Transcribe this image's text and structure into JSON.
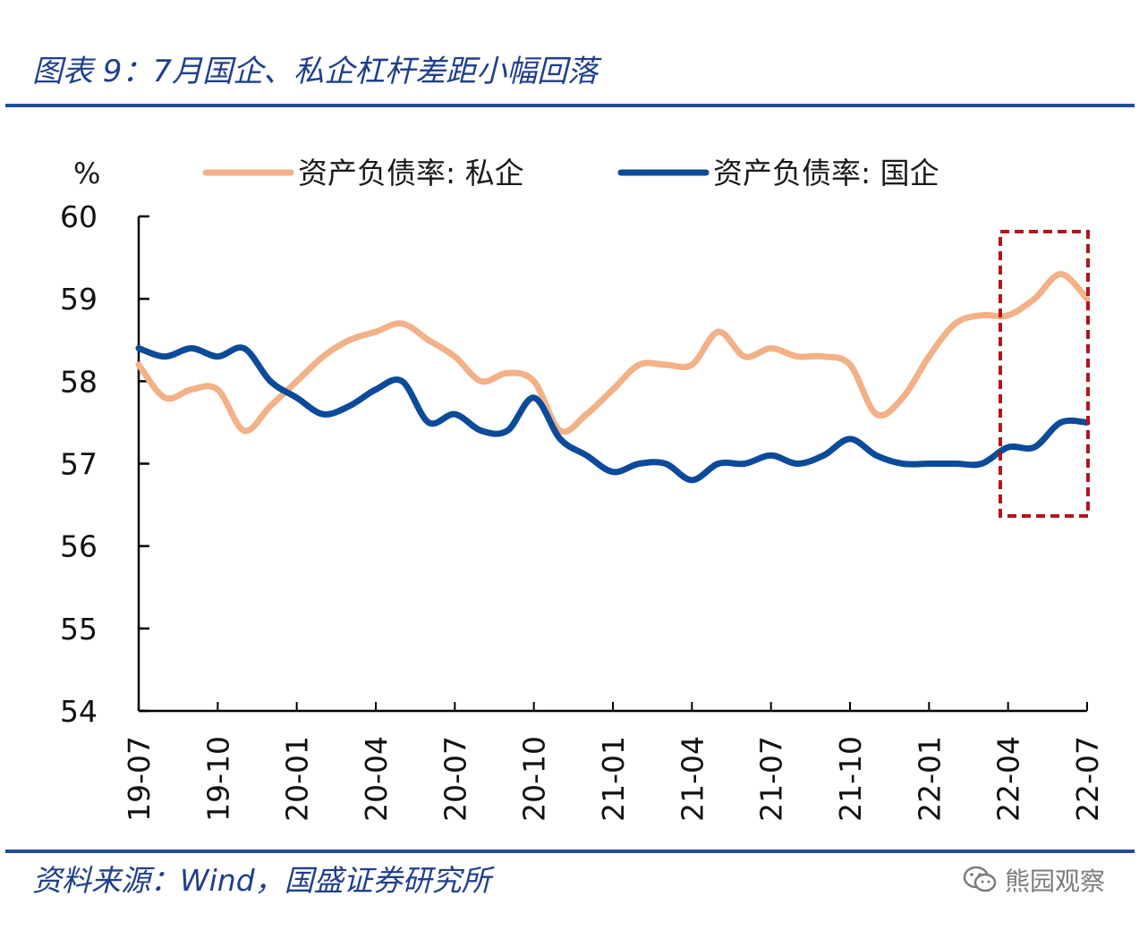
{
  "header": {
    "title": "图表 9：7月国企、私企杠杆差距小幅回落"
  },
  "footer": {
    "source": "资料来源：Wind，国盛证券研究所",
    "watermark": "熊园观察"
  },
  "colors": {
    "private": "#f2b187",
    "state": "#0c4a9a",
    "highlight": "#b0161c",
    "rule": "#1f4e9a",
    "title": "#1f3f8a"
  },
  "chart_data": {
    "type": "line",
    "title": "7月国企、私企杠杆差距小幅回落",
    "ylabel": "%",
    "xlabel": "",
    "ylim": [
      54,
      60
    ],
    "yticks": [
      54,
      55,
      56,
      57,
      58,
      59,
      60
    ],
    "tick_labels": [
      "19-07",
      "19-10",
      "20-01",
      "20-04",
      "20-07",
      "20-10",
      "21-01",
      "21-04",
      "21-07",
      "21-10",
      "22-01",
      "22-04",
      "22-07"
    ],
    "tick_months": [
      0,
      3,
      6,
      9,
      12,
      15,
      18,
      21,
      24,
      27,
      30,
      33,
      36
    ],
    "x_months": 36,
    "legend_placement": "top",
    "series": [
      {
        "name": "资产负债率: 私企",
        "color": "#f2b187",
        "values": [
          58.2,
          57.8,
          57.9,
          57.9,
          57.4,
          57.7,
          58.0,
          58.3,
          58.5,
          58.6,
          58.7,
          58.5,
          58.3,
          58.0,
          58.1,
          58.0,
          57.4,
          57.6,
          57.9,
          58.2,
          58.2,
          58.2,
          58.6,
          58.3,
          58.4,
          58.3,
          58.3,
          58.2,
          57.6,
          57.8,
          58.3,
          58.7,
          58.8,
          58.8,
          59.0,
          59.3,
          59.0
        ]
      },
      {
        "name": "资产负债率: 国企",
        "color": "#0c4a9a",
        "values": [
          58.4,
          58.3,
          58.4,
          58.3,
          58.4,
          58.0,
          57.8,
          57.6,
          57.7,
          57.9,
          58.0,
          57.5,
          57.6,
          57.4,
          57.4,
          57.8,
          57.3,
          57.1,
          56.9,
          57.0,
          57.0,
          56.8,
          57.0,
          57.0,
          57.1,
          57.0,
          57.1,
          57.3,
          57.1,
          57.0,
          57.0,
          57.0,
          57.0,
          57.2,
          57.2,
          57.5,
          57.5
        ]
      }
    ],
    "annotation": "dashed red box highlighting 22-04 to 22-07"
  }
}
